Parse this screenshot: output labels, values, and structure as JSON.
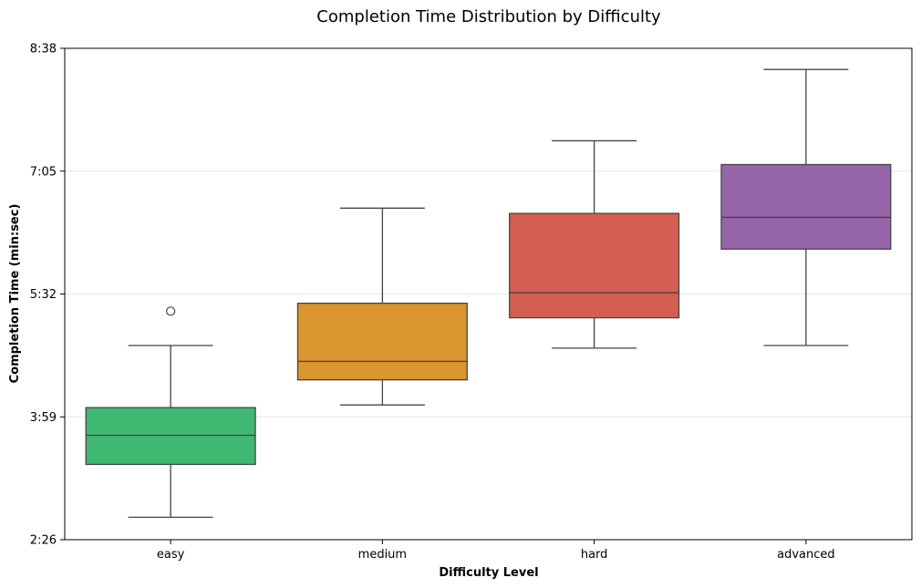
{
  "chart_data": {
    "type": "box",
    "title": "Completion Time Distribution by Difficulty",
    "xlabel": "Difficulty Level",
    "ylabel": "Completion Time (min:sec)",
    "y_unit": "seconds",
    "ylim": [
      146,
      518
    ],
    "yticks": [
      146,
      239,
      332,
      425,
      518
    ],
    "ytick_labels": [
      "2:26",
      "3:59",
      "5:32",
      "7:05",
      "8:38"
    ],
    "grid": "horizontal",
    "categories": [
      "easy",
      "medium",
      "hard",
      "advanced"
    ],
    "boxes": [
      {
        "category": "easy",
        "whisker_low": 163,
        "q1": 203,
        "median": 225,
        "q3": 246,
        "whisker_high": 293,
        "outliers": [
          319
        ],
        "color": "#3fb871"
      },
      {
        "category": "medium",
        "whisker_low": 248,
        "q1": 267,
        "median": 281,
        "q3": 325,
        "whisker_high": 397,
        "outliers": [],
        "color": "#d9952e"
      },
      {
        "category": "hard",
        "whisker_low": 291,
        "q1": 314,
        "median": 333,
        "q3": 393,
        "whisker_high": 448,
        "outliers": [],
        "color": "#d45f51"
      },
      {
        "category": "advanced",
        "whisker_low": 293,
        "q1": 366,
        "median": 390,
        "q3": 430,
        "whisker_high": 502,
        "outliers": [],
        "color": "#9665a9"
      }
    ]
  }
}
